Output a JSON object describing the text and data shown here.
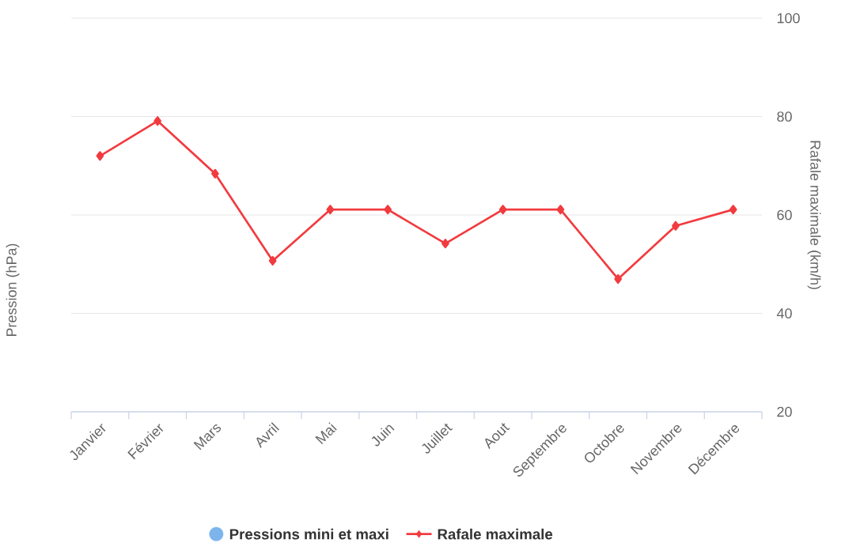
{
  "chart_data": {
    "type": "line",
    "ylabel": "Pression (hPa)",
    "y2label": "Rafale maximale (km/h)",
    "categories": [
      "Janvier",
      "Février",
      "Mars",
      "Avril",
      "Mai",
      "Juin",
      "Juillet",
      "Aout",
      "Septembre",
      "Octobre",
      "Novembre",
      "Décembre"
    ],
    "series": [
      {
        "name": "Pressions mini et maxi",
        "type": "scatter",
        "marker": "circle",
        "color": "#7cb5ec",
        "axis": "y",
        "values": [
          null,
          null,
          null,
          null,
          null,
          null,
          null,
          null,
          null,
          null,
          null,
          null
        ]
      },
      {
        "name": "Rafale maximale",
        "marker": "diamond",
        "line_style": "solid",
        "color": "#f23b3f",
        "axis": "y2",
        "values": [
          72,
          79.1,
          68.4,
          50.7,
          61.1,
          61.1,
          54.2,
          61.1,
          61.1,
          47,
          57.8,
          61.1
        ]
      }
    ],
    "y2lim": [
      20,
      100
    ],
    "y2ticks": [
      20,
      40,
      60,
      80,
      100
    ],
    "grid": true,
    "legend": "bottom"
  }
}
